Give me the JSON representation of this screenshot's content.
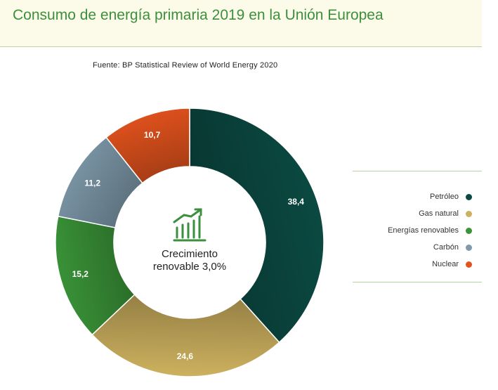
{
  "header": {
    "title": "Consumo de energía primaria 2019 en la Unión Europea"
  },
  "source": "Fuente: BP Statistical Review of World Energy 2020",
  "center": {
    "icon": "growth-bar-chart-icon",
    "line1": "Crecimiento",
    "line2": "renovable 3,0%"
  },
  "colors": {
    "accent": "#3c8f3c"
  },
  "chart_data": {
    "type": "pie",
    "variant": "donut",
    "title": "Consumo de energía primaria 2019 en la Unión Europea",
    "categories": [
      "Petróleo",
      "Gas natural",
      "Energías renovables",
      "Carbón",
      "Nuclear"
    ],
    "values": [
      38.4,
      24.6,
      15.2,
      11.2,
      10.7
    ],
    "value_labels": [
      "38,4",
      "24,6",
      "15,2",
      "11,2",
      "10,7"
    ],
    "colors": [
      "#0b4a42",
      "#cdb15f",
      "#3a9438",
      "#7f9aab",
      "#e4531d"
    ],
    "start_angle": "12 o'clock",
    "direction": "clockwise",
    "legend_position": "right"
  }
}
